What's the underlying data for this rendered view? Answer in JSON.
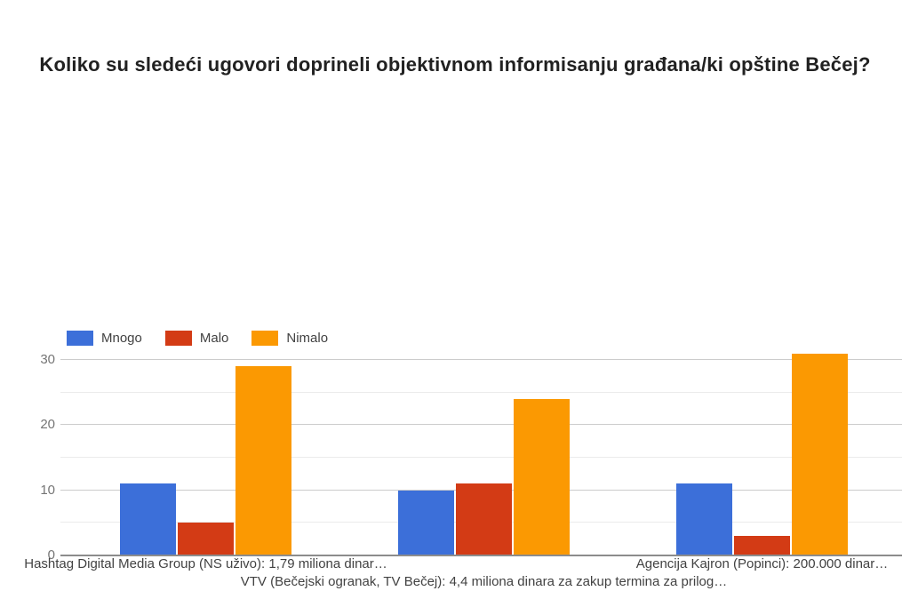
{
  "title": "Koliko su sledeći ugovori doprineli objektivnom informisanju građana/ki opštine Bečej?",
  "chart_data": {
    "type": "bar",
    "title": "Koliko su sledeći ugovori doprineli objektivnom informisanju građana/ki opštine Bečej?",
    "categories": [
      "Hashtag Digital Media Group (NS uživo): 1,79 miliona dinar…",
      "VTV (Bečejski ogranak, TV Bečej): 4,4 miliona dinara za zakup termina za prilog…",
      "Agencija Kajron (Popinci): 200.000 dinar…"
    ],
    "series": [
      {
        "name": "Mnogo",
        "color": "#3C6FD9",
        "values": [
          11,
          10,
          11
        ]
      },
      {
        "name": "Malo",
        "color": "#D33B15",
        "values": [
          5,
          11,
          3
        ]
      },
      {
        "name": "Nimalo",
        "color": "#FB9902",
        "values": [
          29,
          24,
          31
        ]
      }
    ],
    "xlabel": "",
    "ylabel": "",
    "ylim": [
      0,
      30
    ],
    "y_ticks": [
      0,
      10,
      20,
      30
    ],
    "y_minor_gridlines": [
      5,
      15,
      25
    ],
    "grid": true,
    "legend_position": "top-left",
    "colors": {
      "major_gridline": "#cccccc",
      "minor_gridline": "#ebebeb",
      "baseline": "#8c8c8c",
      "y_tick_text": "#757575",
      "category_text": "#424242",
      "legend_text": "#424242",
      "title_text": "#212121",
      "background": "#ffffff"
    }
  }
}
